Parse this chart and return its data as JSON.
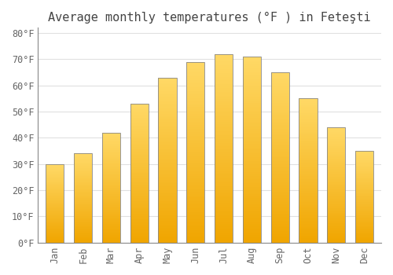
{
  "title": "Average monthly temperatures (°F ) in Feteşti",
  "months": [
    "Jan",
    "Feb",
    "Mar",
    "Apr",
    "May",
    "Jun",
    "Jul",
    "Aug",
    "Sep",
    "Oct",
    "Nov",
    "Dec"
  ],
  "values": [
    30,
    34,
    42,
    53,
    63,
    69,
    72,
    71,
    65,
    55,
    44,
    35
  ],
  "bar_color_top": "#FFD966",
  "bar_color_bottom": "#F0A500",
  "bar_edge_color": "#888888",
  "background_color": "#FFFFFF",
  "grid_color": "#E0E0E0",
  "ylim": [
    0,
    82
  ],
  "yticks": [
    0,
    10,
    20,
    30,
    40,
    50,
    60,
    70,
    80
  ],
  "ytick_labels": [
    "0°F",
    "10°F",
    "20°F",
    "30°F",
    "40°F",
    "50°F",
    "60°F",
    "70°F",
    "80°F"
  ],
  "font_family": "monospace",
  "title_fontsize": 11,
  "tick_fontsize": 8.5,
  "text_color": "#666666",
  "title_color": "#444444"
}
